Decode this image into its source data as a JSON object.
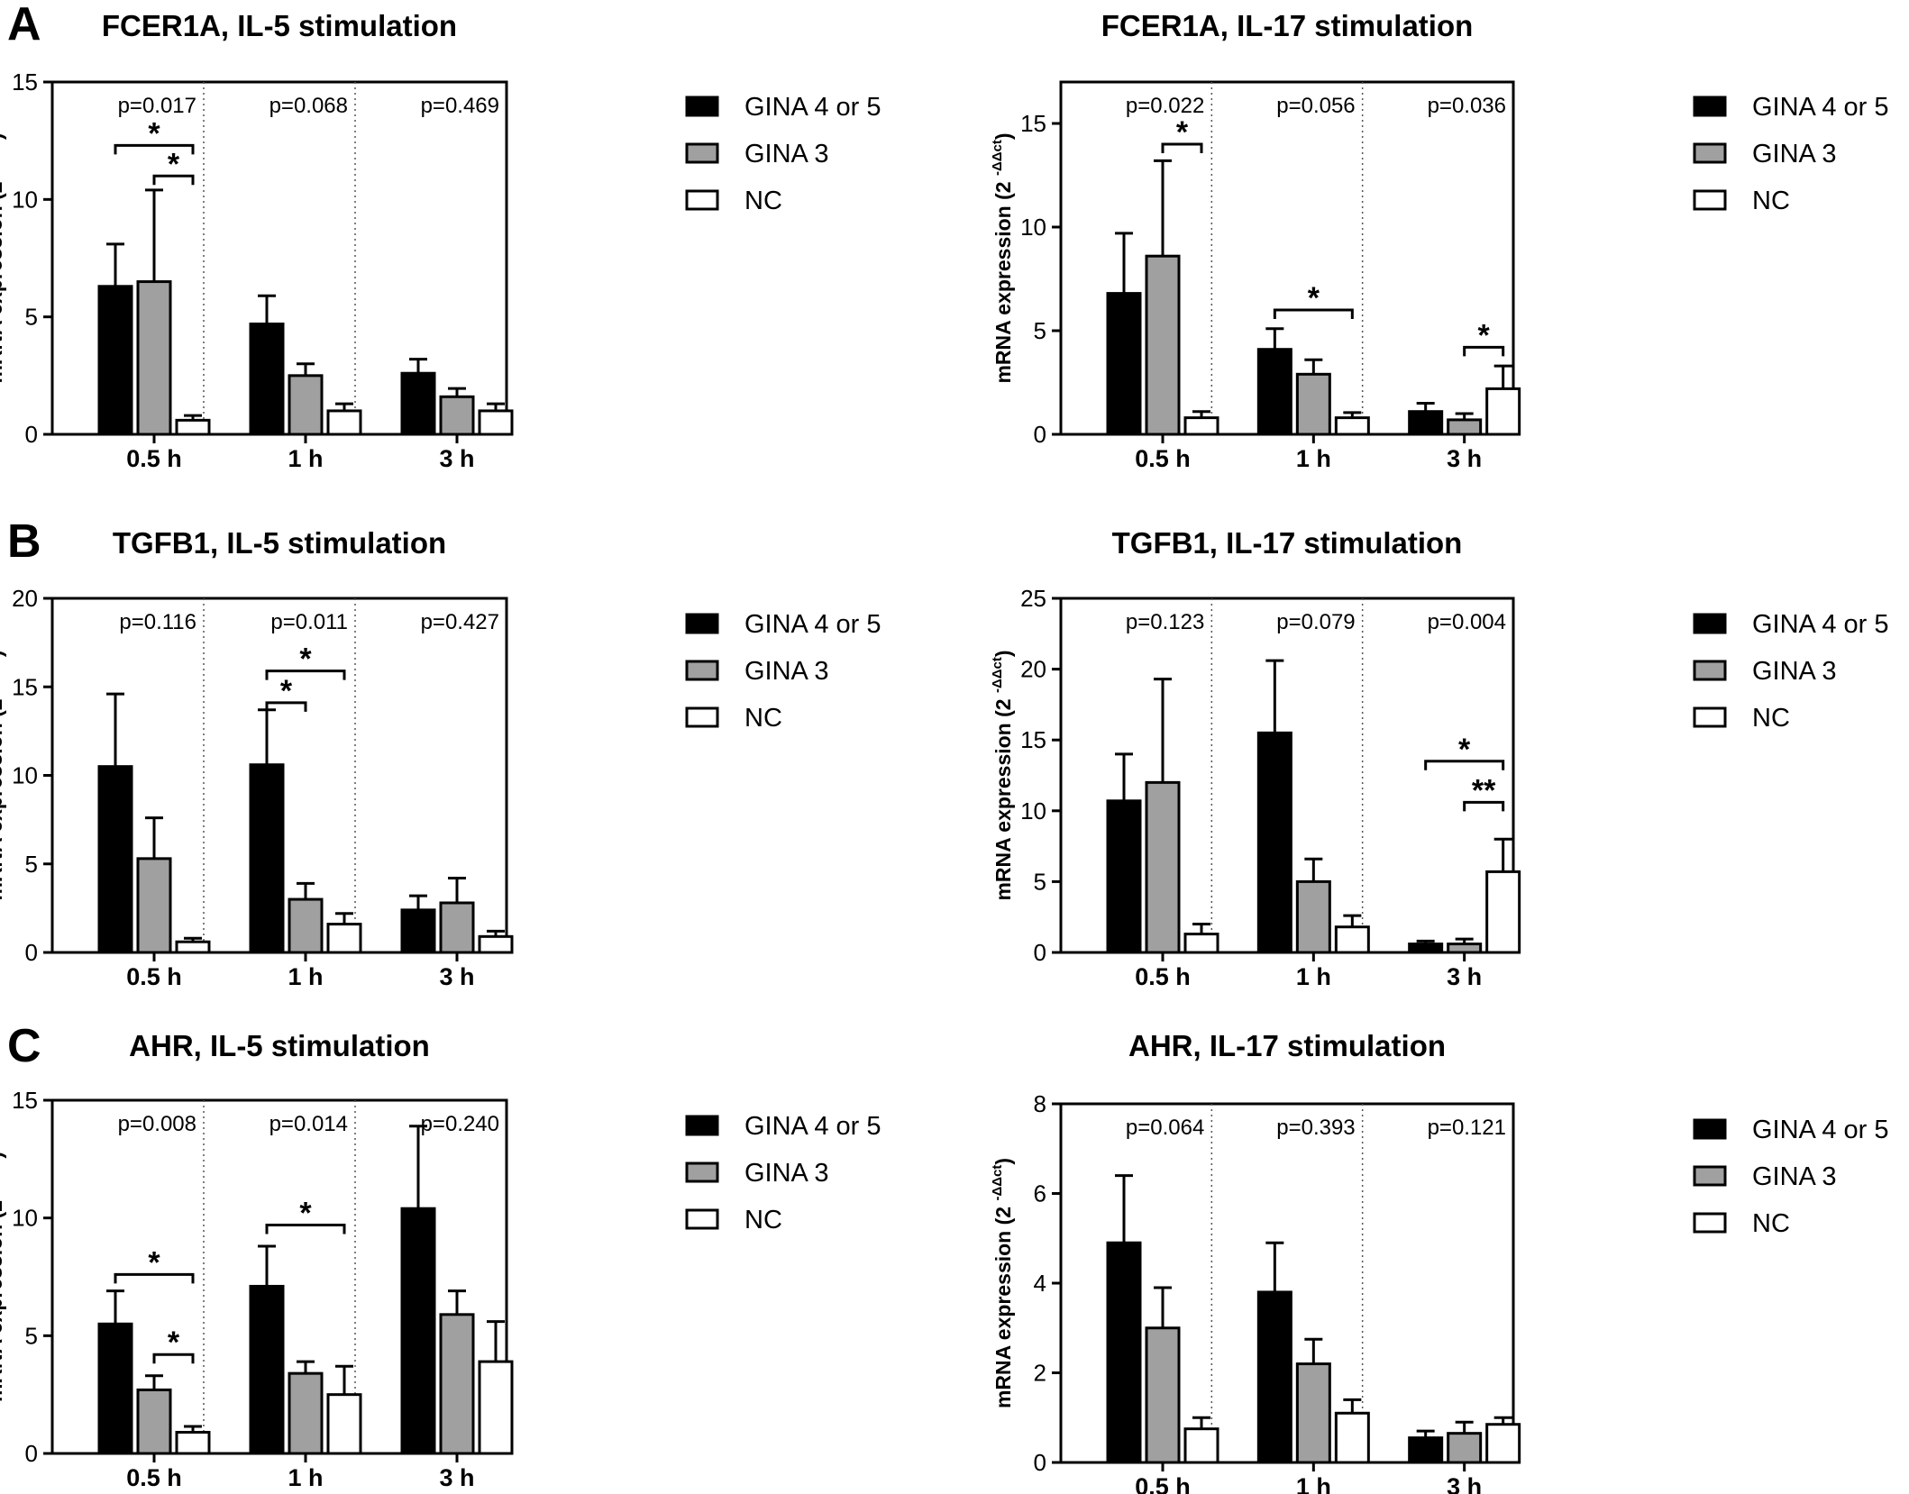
{
  "panel_labels": [
    "A",
    "B",
    "C"
  ],
  "x_axis_ticks": [
    "0.5 h",
    "1 h",
    "3 h"
  ],
  "y_axis_label_main": "mRNA expression (2",
  "y_axis_label_sup": "-ΔΔct",
  "y_axis_label_close": ")",
  "legend": [
    "GINA 4 or 5",
    "GINA 3",
    "NC"
  ],
  "colors": {
    "GINA 4 or 5": "#000000",
    "GINA 3": "#a0a0a0",
    "NC": "#ffffff",
    "axis": "#000000"
  },
  "chart_data": [
    {
      "type": "bar",
      "title": "FCER1A, IL-5 stimulation",
      "panel": "A",
      "categories": [
        "0.5 h",
        "1 h",
        "3 h"
      ],
      "ylim": [
        0,
        15
      ],
      "yticks": [
        0,
        5,
        10,
        15
      ],
      "p_values": [
        "p=0.017",
        "p=0.068",
        "p=0.469"
      ],
      "series": [
        {
          "name": "GINA 4 or 5",
          "values": [
            6.3,
            4.7,
            2.6
          ],
          "errors": [
            1.8,
            1.2,
            0.6
          ]
        },
        {
          "name": "GINA 3",
          "values": [
            6.5,
            2.5,
            1.6
          ],
          "errors": [
            3.9,
            0.5,
            0.35
          ]
        },
        {
          "name": "NC",
          "values": [
            0.6,
            1.0,
            1.0
          ],
          "errors": [
            0.2,
            0.3,
            0.3
          ]
        }
      ],
      "significance": [
        {
          "category": 0,
          "from": 0,
          "to": 2,
          "y": 12.3,
          "label": "*"
        },
        {
          "category": 0,
          "from": 1,
          "to": 2,
          "y": 11.0,
          "label": "*"
        }
      ]
    },
    {
      "type": "bar",
      "title": "FCER1A, IL-17 stimulation",
      "panel": "A",
      "categories": [
        "0.5 h",
        "1 h",
        "3 h"
      ],
      "ylim": [
        0,
        17
      ],
      "yticks": [
        0,
        5,
        10,
        15
      ],
      "p_values": [
        "p=0.022",
        "p=0.056",
        "p=0.036"
      ],
      "series": [
        {
          "name": "GINA 4 or 5",
          "values": [
            6.8,
            4.1,
            1.1
          ],
          "errors": [
            2.9,
            1.0,
            0.4
          ]
        },
        {
          "name": "GINA 3",
          "values": [
            8.6,
            2.9,
            0.7
          ],
          "errors": [
            4.6,
            0.7,
            0.3
          ]
        },
        {
          "name": "NC",
          "values": [
            0.8,
            0.8,
            2.2
          ],
          "errors": [
            0.3,
            0.25,
            1.1
          ]
        }
      ],
      "significance": [
        {
          "category": 0,
          "from": 1,
          "to": 2,
          "y": 14.0,
          "label": "*"
        },
        {
          "category": 1,
          "from": 0,
          "to": 2,
          "y": 6.0,
          "label": "*"
        },
        {
          "category": 2,
          "from": 1,
          "to": 2,
          "y": 4.2,
          "label": "*"
        }
      ]
    },
    {
      "type": "bar",
      "title": "TGFB1, IL-5 stimulation",
      "panel": "B",
      "categories": [
        "0.5 h",
        "1 h",
        "3 h"
      ],
      "ylim": [
        0,
        20
      ],
      "yticks": [
        0,
        5,
        10,
        15,
        20
      ],
      "p_values": [
        "p=0.116",
        "p=0.011",
        "p=0.427"
      ],
      "series": [
        {
          "name": "GINA 4 or 5",
          "values": [
            10.5,
            10.6,
            2.4
          ],
          "errors": [
            4.1,
            3.1,
            0.8
          ]
        },
        {
          "name": "GINA 3",
          "values": [
            5.3,
            3.0,
            2.8
          ],
          "errors": [
            2.3,
            0.9,
            1.4
          ]
        },
        {
          "name": "NC",
          "values": [
            0.6,
            1.6,
            0.9
          ],
          "errors": [
            0.2,
            0.6,
            0.3
          ]
        }
      ],
      "significance": [
        {
          "category": 1,
          "from": 0,
          "to": 2,
          "y": 15.9,
          "label": "*"
        },
        {
          "category": 1,
          "from": 0,
          "to": 1,
          "y": 14.1,
          "label": "*"
        }
      ]
    },
    {
      "type": "bar",
      "title": "TGFB1, IL-17 stimulation",
      "panel": "B",
      "categories": [
        "0.5 h",
        "1 h",
        "3 h"
      ],
      "ylim": [
        0,
        25
      ],
      "yticks": [
        0,
        5,
        10,
        15,
        20,
        25
      ],
      "p_values": [
        "p=0.123",
        "p=0.079",
        "p=0.004"
      ],
      "series": [
        {
          "name": "GINA 4 or 5",
          "values": [
            10.7,
            15.5,
            0.6
          ],
          "errors": [
            3.3,
            5.1,
            0.2
          ]
        },
        {
          "name": "GINA 3",
          "values": [
            12.0,
            5.0,
            0.6
          ],
          "errors": [
            7.3,
            1.6,
            0.35
          ]
        },
        {
          "name": "NC",
          "values": [
            1.3,
            1.8,
            5.7
          ],
          "errors": [
            0.7,
            0.8,
            2.3
          ]
        }
      ],
      "significance": [
        {
          "category": 2,
          "from": 0,
          "to": 2,
          "y": 13.5,
          "label": "*"
        },
        {
          "category": 2,
          "from": 1,
          "to": 2,
          "y": 10.6,
          "label": "**"
        }
      ]
    },
    {
      "type": "bar",
      "title": "AHR, IL-5 stimulation",
      "panel": "C",
      "categories": [
        "0.5 h",
        "1 h",
        "3 h"
      ],
      "ylim": [
        0,
        15
      ],
      "yticks": [
        0,
        5,
        10,
        15
      ],
      "p_values": [
        "p=0.008",
        "p=0.014",
        "p=0.240"
      ],
      "series": [
        {
          "name": "GINA 4 or 5",
          "values": [
            5.5,
            7.1,
            10.4
          ],
          "errors": [
            1.4,
            1.7,
            3.5
          ]
        },
        {
          "name": "GINA 3",
          "values": [
            2.7,
            3.4,
            5.9
          ],
          "errors": [
            0.6,
            0.5,
            1.0
          ]
        },
        {
          "name": "NC",
          "values": [
            0.9,
            2.5,
            3.9
          ],
          "errors": [
            0.25,
            1.2,
            1.7
          ]
        }
      ],
      "significance": [
        {
          "category": 0,
          "from": 0,
          "to": 2,
          "y": 7.6,
          "label": "*"
        },
        {
          "category": 0,
          "from": 1,
          "to": 2,
          "y": 4.2,
          "label": "*"
        },
        {
          "category": 1,
          "from": 0,
          "to": 2,
          "y": 9.7,
          "label": "*"
        }
      ]
    },
    {
      "type": "bar",
      "title": "AHR, IL-17 stimulation",
      "panel": "C",
      "categories": [
        "0.5 h",
        "1 h",
        "3 h"
      ],
      "ylim": [
        0,
        8
      ],
      "yticks": [
        0,
        2,
        4,
        6,
        8
      ],
      "p_values": [
        "p=0.064",
        "p=0.393",
        "p=0.121"
      ],
      "series": [
        {
          "name": "GINA 4 or 5",
          "values": [
            4.9,
            3.8,
            0.55
          ],
          "errors": [
            1.5,
            1.1,
            0.15
          ]
        },
        {
          "name": "GINA 3",
          "values": [
            3.0,
            2.2,
            0.65
          ],
          "errors": [
            0.9,
            0.55,
            0.25
          ]
        },
        {
          "name": "NC",
          "values": [
            0.75,
            1.1,
            0.85
          ],
          "errors": [
            0.25,
            0.3,
            0.15
          ]
        }
      ],
      "significance": []
    }
  ]
}
